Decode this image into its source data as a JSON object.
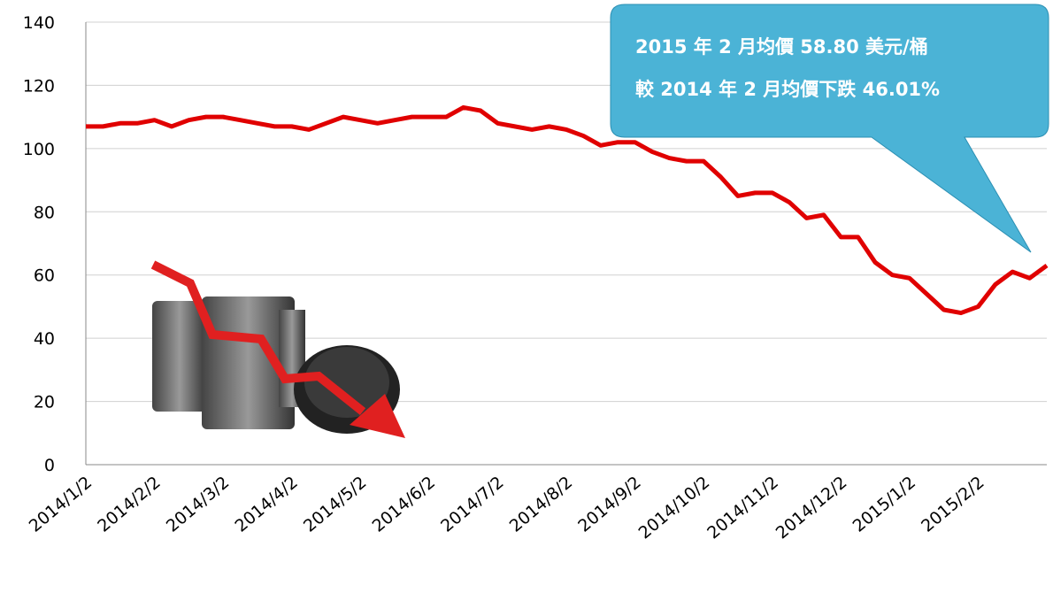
{
  "chart_data": {
    "type": "line",
    "categories": [
      "2014/1/2",
      null,
      null,
      null,
      "2014/2/2",
      null,
      null,
      null,
      "2014/3/2",
      null,
      null,
      null,
      "2014/4/2",
      null,
      null,
      null,
      "2014/5/2",
      null,
      null,
      null,
      "2014/6/2",
      null,
      null,
      null,
      "2014/7/2",
      null,
      null,
      null,
      "2014/8/2",
      null,
      null,
      null,
      "2014/9/2",
      null,
      null,
      null,
      "2014/10/2",
      null,
      null,
      null,
      "2014/11/2",
      null,
      null,
      null,
      "2014/12/2",
      null,
      null,
      null,
      "2015/1/2",
      null,
      null,
      null,
      "2015/2/2",
      null,
      null,
      null,
      null
    ],
    "series": [
      {
        "color": "#e00000",
        "values": [
          107,
          107,
          108,
          108,
          109,
          107,
          109,
          110,
          110,
          109,
          108,
          107,
          107,
          106,
          108,
          110,
          109,
          108,
          109,
          110,
          110,
          110,
          113,
          112,
          108,
          107,
          106,
          107,
          106,
          104,
          101,
          102,
          102,
          99,
          97,
          96,
          96,
          91,
          85,
          86,
          86,
          83,
          78,
          79,
          72,
          72,
          64,
          60,
          59,
          54,
          49,
          48,
          50,
          57,
          61,
          59,
          63
        ]
      }
    ],
    "ylim": [
      0,
      140
    ],
    "yticks": [
      0,
      20,
      40,
      60,
      80,
      100,
      120,
      140
    ],
    "grid": true,
    "annotation": [
      "2015 年 2 月均價 58.80 美元/桶",
      "較 2014 年 2 月均價下跌 46.01%"
    ]
  }
}
